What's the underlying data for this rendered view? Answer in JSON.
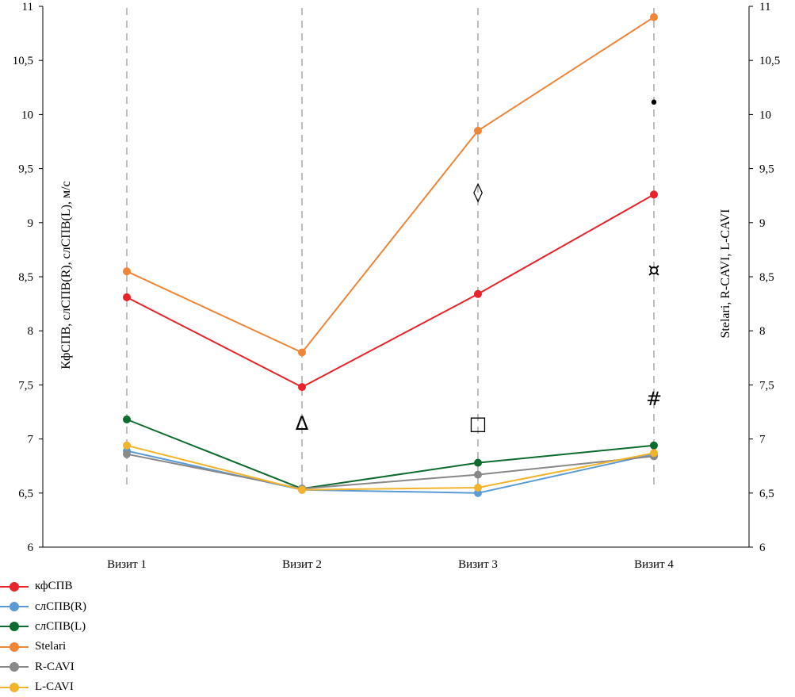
{
  "chart_data": {
    "type": "line",
    "categories": [
      "Визит 1",
      "Визит 2",
      "Визит 3",
      "Визит 4"
    ],
    "ylabel_left": "КфСПВ, слСПВ(R), слСПВ(L), м/с",
    "ylabel_right": "Stelari, R-CAVI, L-CAVI",
    "ylim": [
      6,
      11
    ],
    "yticks": [
      "6",
      "6,5",
      "7",
      "7,5",
      "8",
      "8,5",
      "9",
      "9,5",
      "10",
      "10,5",
      "11"
    ],
    "series": [
      {
        "name": "кфСПВ",
        "color": "#e8232a",
        "values": [
          8.31,
          7.48,
          8.34,
          9.26
        ]
      },
      {
        "name": "слСПВ(R)",
        "color": "#5a9bd5",
        "values": [
          6.89,
          6.53,
          6.5,
          6.86
        ]
      },
      {
        "name": "слСПВ(L)",
        "color": "#0e6b2e",
        "values": [
          7.18,
          6.54,
          6.78,
          6.94
        ]
      },
      {
        "name": "Stelari",
        "color": "#ef8538",
        "values": [
          8.55,
          7.8,
          9.85,
          10.9
        ]
      },
      {
        "name": "R-CAVI",
        "color": "#888888",
        "values": [
          6.86,
          6.54,
          6.67,
          6.84
        ]
      },
      {
        "name": "L-CAVI",
        "color": "#f2b42c",
        "values": [
          6.94,
          6.53,
          6.55,
          6.87
        ]
      }
    ],
    "annotations": [
      {
        "text": "Δ",
        "category": 1,
        "y": 7.15
      },
      {
        "text": "◊",
        "category": 2,
        "y": 9.29
      },
      {
        "text": "□",
        "category": 2,
        "y": 7.15
      },
      {
        "text": "•",
        "category": 3,
        "y": 10.12
      },
      {
        "text": "¤",
        "category": 3,
        "y": 8.57
      },
      {
        "text": "#",
        "category": 3,
        "y": 7.38
      }
    ],
    "grid": "vertical dashed lines at categories",
    "legend": "bottom-left"
  }
}
